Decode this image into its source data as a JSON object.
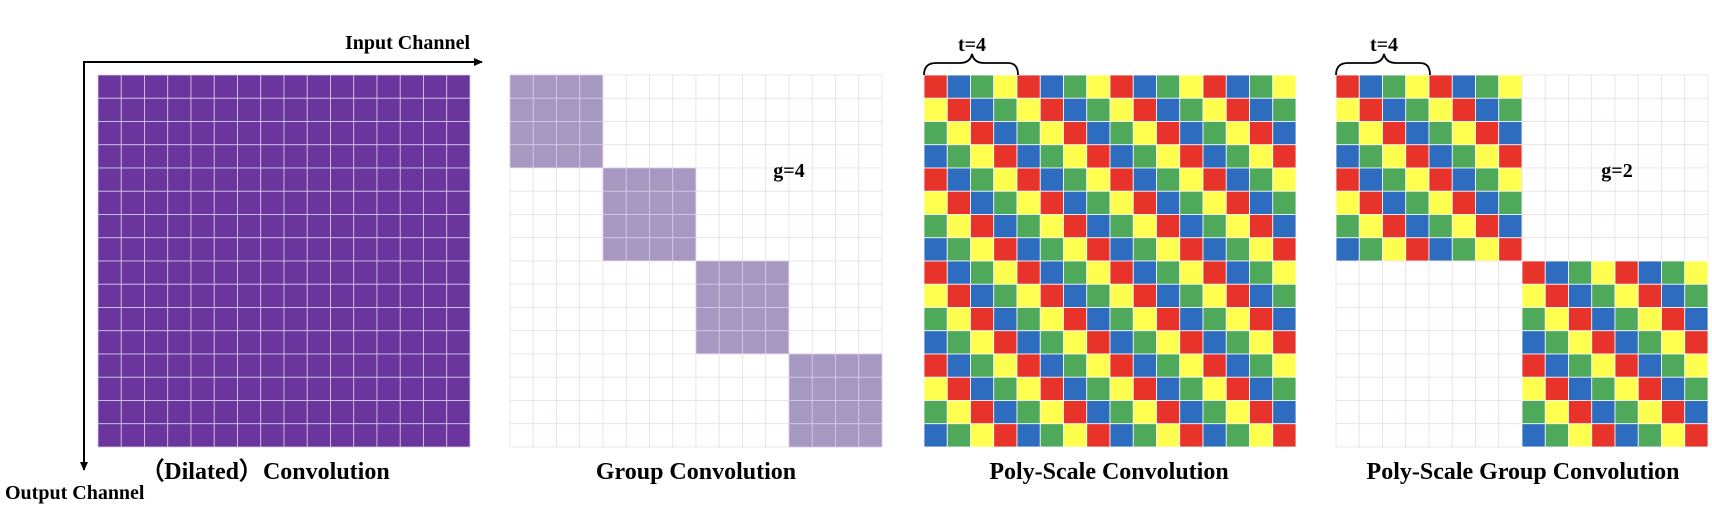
{
  "axes": {
    "x_label": "Input Channel",
    "y_label": "Output Channel"
  },
  "grid_size": 16,
  "colors": {
    "dilated": "#6a359c",
    "group": "#a798c1",
    "empty": "#ffffff",
    "empty_grid": "#ecdfe3",
    "filled_grid": "#d8cce8",
    "poly_cycle": [
      "#e8332a",
      "#2e6cbf",
      "#4ea95a",
      "#ffff4f"
    ]
  },
  "panels": [
    {
      "id": "dilated",
      "caption": "（Dilated）Convolution",
      "type": "full"
    },
    {
      "id": "group",
      "caption": "Group Convolution",
      "type": "group",
      "g": 4,
      "g_label": "g=4"
    },
    {
      "id": "poly",
      "caption": "Poly-Scale Convolution",
      "type": "poly",
      "t_label": "t=4"
    },
    {
      "id": "poly-group",
      "caption": "Poly-Scale Group Convolution",
      "type": "poly-group",
      "g": 2,
      "g_label": "g=2",
      "t_label": "t=4"
    }
  ]
}
